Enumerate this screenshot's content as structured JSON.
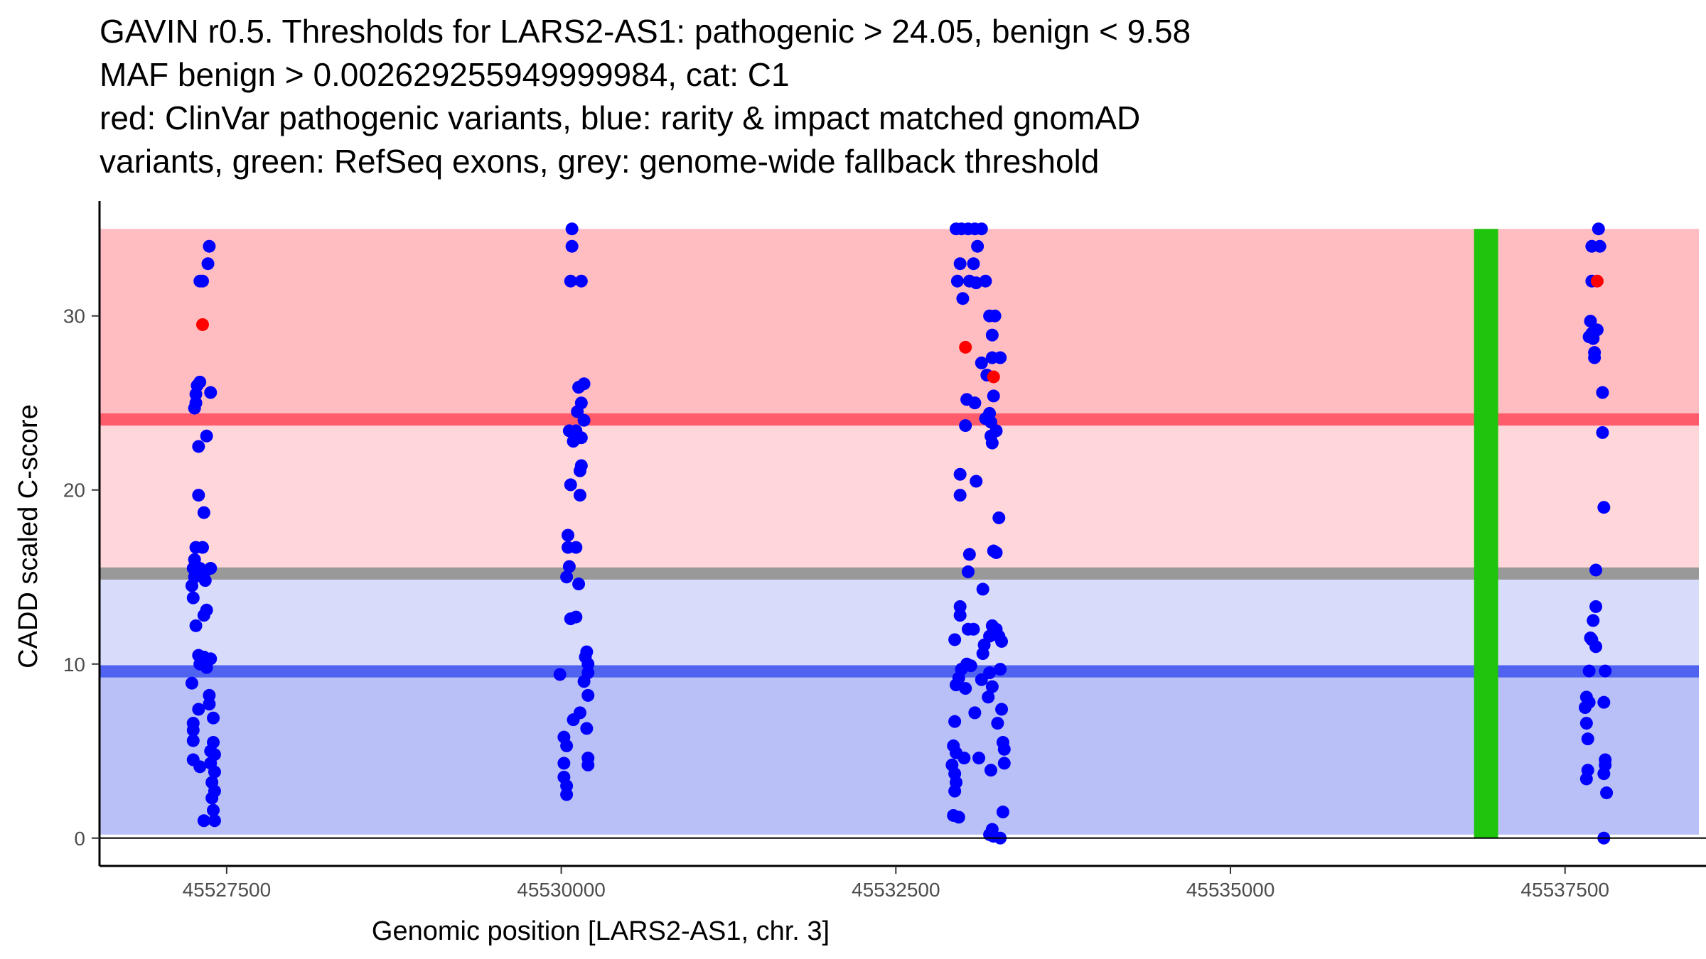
{
  "chart_data": {
    "type": "scatter",
    "title_lines": [
      "GAVIN r0.5. Thresholds for LARS2-AS1: pathogenic > 24.05, benign < 9.58",
      "MAF benign > 0.002629255949999984, cat: C1",
      "red: ClinVar pathogenic variants, blue: rarity & impact matched gnomAD",
      "variants, green: RefSeq exons, grey: genome-wide fallback threshold"
    ],
    "xlabel": "Genomic position [LARS2-AS1, chr. 3]",
    "ylabel": "CADD scaled C-score",
    "xlim": [
      45526550,
      45538500
    ],
    "ylim": [
      -1.6,
      36.6
    ],
    "x_ticks": [
      45527500,
      45530000,
      45532500,
      45535000,
      45537500
    ],
    "x_tick_labels": [
      "45527500",
      "45530000",
      "45532500",
      "45535000",
      "45537500"
    ],
    "y_ticks": [
      0,
      10,
      20,
      30
    ],
    "y_tick_labels": [
      "0",
      "10",
      "20",
      "30"
    ],
    "colors": {
      "benign_region": "#b9bff7",
      "benign_mid_region": "#d9dbfb",
      "pathogenic_mid_region": "#ffd6da",
      "pathogenic_region": "#ffbcc1",
      "pathogenic_line": "#ff5c6b",
      "benign_line": "#4f63f0",
      "fallback_line": "#999999",
      "exon": "#1fc40c",
      "clinvar": "#ff0000",
      "gnomad": "#0000ff"
    },
    "regions": [
      {
        "name": "benign",
        "y0": 0.2,
        "y1": 9.58
      },
      {
        "name": "benign-fallback",
        "y0": 9.58,
        "y1": 15.2
      },
      {
        "name": "fallback-pathogenic",
        "y0": 15.2,
        "y1": 24.05
      },
      {
        "name": "pathogenic",
        "y0": 24.05,
        "y1": 35
      }
    ],
    "threshold_lines": [
      {
        "name": "pathogenic",
        "y": 24.05,
        "width": 0.7
      },
      {
        "name": "fallback",
        "y": 15.2,
        "width": 0.7
      },
      {
        "name": "benign",
        "y": 9.58,
        "width": 0.7
      }
    ],
    "exons": [
      {
        "x0": 45536820,
        "x1": 45537000,
        "y0": 0,
        "y1": 35
      }
    ],
    "series": [
      {
        "name": "ClinVar pathogenic variants",
        "points": [
          [
            45527320,
            29.5
          ],
          [
            45533020,
            28.2
          ],
          [
            45533230,
            26.5
          ],
          [
            45537740,
            32.0
          ]
        ]
      },
      {
        "name": "rarity & impact matched gnomAD variants",
        "points": [
          [
            45527300,
            32.0
          ],
          [
            45527320,
            32.0
          ],
          [
            45527370,
            34.0
          ],
          [
            45527360,
            33.0
          ],
          [
            45527280,
            26.0
          ],
          [
            45527300,
            26.2
          ],
          [
            45527270,
            25.5
          ],
          [
            45527270,
            25.0
          ],
          [
            45527260,
            24.7
          ],
          [
            45527380,
            25.6
          ],
          [
            45527350,
            23.1
          ],
          [
            45527290,
            22.5
          ],
          [
            45527290,
            19.7
          ],
          [
            45527330,
            18.7
          ],
          [
            45527270,
            16.7
          ],
          [
            45527320,
            16.7
          ],
          [
            45527260,
            16.0
          ],
          [
            45527250,
            15.5
          ],
          [
            45527300,
            15.5
          ],
          [
            45527330,
            15.2
          ],
          [
            45527380,
            15.5
          ],
          [
            45527260,
            15.0
          ],
          [
            45527240,
            14.5
          ],
          [
            45527250,
            13.8
          ],
          [
            45527340,
            14.8
          ],
          [
            45527350,
            13.1
          ],
          [
            45527330,
            12.8
          ],
          [
            45527270,
            12.2
          ],
          [
            45527290,
            10.5
          ],
          [
            45527330,
            10.4
          ],
          [
            45527380,
            10.3
          ],
          [
            45527300,
            10.0
          ],
          [
            45527350,
            9.8
          ],
          [
            45527240,
            8.9
          ],
          [
            45527370,
            8.2
          ],
          [
            45527370,
            7.7
          ],
          [
            45527290,
            7.4
          ],
          [
            45527400,
            6.9
          ],
          [
            45527250,
            6.6
          ],
          [
            45527250,
            6.2
          ],
          [
            45527250,
            5.6
          ],
          [
            45527400,
            5.5
          ],
          [
            45527380,
            5.0
          ],
          [
            45527410,
            4.8
          ],
          [
            45527250,
            4.5
          ],
          [
            45527300,
            4.1
          ],
          [
            45527380,
            4.3
          ],
          [
            45527410,
            3.8
          ],
          [
            45527390,
            3.2
          ],
          [
            45527410,
            2.7
          ],
          [
            45527390,
            2.3
          ],
          [
            45527400,
            1.6
          ],
          [
            45527330,
            1.0
          ],
          [
            45527410,
            1.0
          ],
          [
            45530080,
            35.0
          ],
          [
            45530080,
            34.0
          ],
          [
            45530070,
            32.0
          ],
          [
            45530150,
            32.0
          ],
          [
            45530130,
            25.9
          ],
          [
            45530170,
            26.1
          ],
          [
            45530150,
            25.0
          ],
          [
            45530120,
            24.5
          ],
          [
            45530170,
            24.0
          ],
          [
            45530060,
            23.4
          ],
          [
            45530110,
            23.4
          ],
          [
            45530150,
            23.0
          ],
          [
            45530090,
            22.8
          ],
          [
            45530150,
            21.4
          ],
          [
            45530140,
            21.1
          ],
          [
            45530070,
            20.3
          ],
          [
            45530140,
            19.7
          ],
          [
            45530050,
            17.4
          ],
          [
            45530050,
            16.7
          ],
          [
            45530110,
            16.7
          ],
          [
            45530060,
            15.6
          ],
          [
            45530040,
            15.0
          ],
          [
            45530130,
            14.6
          ],
          [
            45530070,
            12.6
          ],
          [
            45530110,
            12.7
          ],
          [
            45530190,
            10.7
          ],
          [
            45530180,
            10.4
          ],
          [
            45530200,
            10.0
          ],
          [
            45530200,
            9.5
          ],
          [
            45529990,
            9.4
          ],
          [
            45530170,
            9.0
          ],
          [
            45530200,
            8.2
          ],
          [
            45530090,
            6.8
          ],
          [
            45530140,
            7.2
          ],
          [
            45530190,
            6.3
          ],
          [
            45530020,
            5.8
          ],
          [
            45530040,
            5.3
          ],
          [
            45530200,
            4.6
          ],
          [
            45530200,
            4.2
          ],
          [
            45530020,
            4.3
          ],
          [
            45530020,
            3.5
          ],
          [
            45530040,
            3.0
          ],
          [
            45530040,
            2.5
          ],
          [
            45532950,
            35.0
          ],
          [
            45532990,
            35.0
          ],
          [
            45533040,
            35.0
          ],
          [
            45533090,
            35.0
          ],
          [
            45533140,
            35.0
          ],
          [
            45533110,
            34.0
          ],
          [
            45532980,
            33.0
          ],
          [
            45533080,
            33.0
          ],
          [
            45532960,
            32.0
          ],
          [
            45533050,
            32.0
          ],
          [
            45533170,
            32.0
          ],
          [
            45533100,
            31.9
          ],
          [
            45533000,
            31.0
          ],
          [
            45533200,
            30.0
          ],
          [
            45533240,
            30.0
          ],
          [
            45533220,
            28.9
          ],
          [
            45533280,
            27.6
          ],
          [
            45533140,
            27.3
          ],
          [
            45533220,
            27.6
          ],
          [
            45533180,
            26.6
          ],
          [
            45533030,
            25.2
          ],
          [
            45533090,
            25.0
          ],
          [
            45533230,
            25.4
          ],
          [
            45533170,
            24.1
          ],
          [
            45533200,
            24.4
          ],
          [
            45533210,
            23.9
          ],
          [
            45533020,
            23.7
          ],
          [
            45533250,
            23.4
          ],
          [
            45533210,
            23.1
          ],
          [
            45533220,
            22.7
          ],
          [
            45532980,
            20.9
          ],
          [
            45533100,
            20.5
          ],
          [
            45532980,
            19.7
          ],
          [
            45533270,
            18.4
          ],
          [
            45533230,
            16.5
          ],
          [
            45533250,
            16.4
          ],
          [
            45533050,
            16.3
          ],
          [
            45533040,
            15.3
          ],
          [
            45533150,
            14.3
          ],
          [
            45532980,
            13.3
          ],
          [
            45532980,
            12.8
          ],
          [
            45533040,
            12.0
          ],
          [
            45533080,
            12.0
          ],
          [
            45533220,
            12.2
          ],
          [
            45533250,
            12.0
          ],
          [
            45533270,
            11.6
          ],
          [
            45532940,
            11.4
          ],
          [
            45533290,
            11.3
          ],
          [
            45533200,
            11.6
          ],
          [
            45533160,
            11.1
          ],
          [
            45533150,
            10.6
          ],
          [
            45533030,
            10.0
          ],
          [
            45532990,
            9.7
          ],
          [
            45533060,
            9.9
          ],
          [
            45533200,
            9.5
          ],
          [
            45533280,
            9.7
          ],
          [
            45532970,
            9.2
          ],
          [
            45533140,
            9.1
          ],
          [
            45532950,
            8.8
          ],
          [
            45533020,
            8.6
          ],
          [
            45533220,
            8.7
          ],
          [
            45533190,
            8.1
          ],
          [
            45533290,
            7.4
          ],
          [
            45533090,
            7.2
          ],
          [
            45532940,
            6.7
          ],
          [
            45533260,
            6.6
          ],
          [
            45533300,
            5.5
          ],
          [
            45532930,
            5.3
          ],
          [
            45533310,
            5.1
          ],
          [
            45532950,
            4.9
          ],
          [
            45533010,
            4.6
          ],
          [
            45533120,
            4.6
          ],
          [
            45532920,
            4.2
          ],
          [
            45533310,
            4.3
          ],
          [
            45533210,
            3.9
          ],
          [
            45532940,
            3.7
          ],
          [
            45532950,
            3.2
          ],
          [
            45532940,
            2.7
          ],
          [
            45532930,
            1.3
          ],
          [
            45532970,
            1.2
          ],
          [
            45533300,
            1.5
          ],
          [
            45533220,
            0.5
          ],
          [
            45533200,
            0.2
          ],
          [
            45533230,
            0.1
          ],
          [
            45533280,
            0.0
          ],
          [
            45537750,
            35.0
          ],
          [
            45537700,
            34.0
          ],
          [
            45537760,
            34.0
          ],
          [
            45537700,
            32.0
          ],
          [
            45537690,
            29.7
          ],
          [
            45537740,
            29.2
          ],
          [
            45537700,
            29.0
          ],
          [
            45537710,
            28.7
          ],
          [
            45537680,
            28.8
          ],
          [
            45537720,
            27.9
          ],
          [
            45537720,
            27.6
          ],
          [
            45537780,
            25.6
          ],
          [
            45537780,
            23.3
          ],
          [
            45537790,
            19.0
          ],
          [
            45537730,
            15.4
          ],
          [
            45537730,
            13.3
          ],
          [
            45537710,
            12.5
          ],
          [
            45537690,
            11.5
          ],
          [
            45537730,
            11.0
          ],
          [
            45537700,
            11.4
          ],
          [
            45537680,
            9.6
          ],
          [
            45537800,
            9.6
          ],
          [
            45537660,
            8.1
          ],
          [
            45537680,
            7.8
          ],
          [
            45537790,
            7.8
          ],
          [
            45537650,
            7.5
          ],
          [
            45537660,
            6.6
          ],
          [
            45537670,
            5.7
          ],
          [
            45537800,
            4.5
          ],
          [
            45537800,
            4.2
          ],
          [
            45537790,
            3.7
          ],
          [
            45537670,
            3.9
          ],
          [
            45537660,
            3.4
          ],
          [
            45537810,
            2.6
          ],
          [
            45537790,
            0.0
          ]
        ]
      }
    ]
  }
}
